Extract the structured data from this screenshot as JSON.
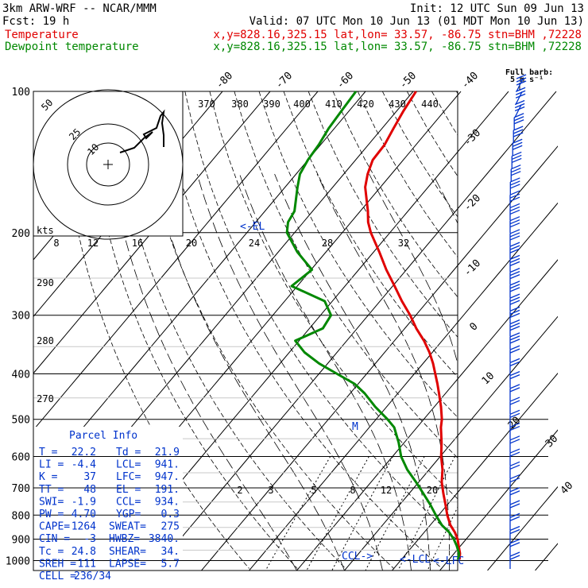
{
  "header": {
    "model": "3km ARW-WRF -- NCAR/MMM",
    "init": "Init: 12 UTC Sun 09 Jun 13",
    "fcst": "Fcst:   19 h",
    "valid": "Valid: 07 UTC Mon 10 Jun 13 (01 MDT Mon 10 Jun 13)"
  },
  "legend": [
    {
      "label": "Temperature",
      "info": "x,y=828.16,325.15   lat,lon= 33.57, -86.75  stn=BHM ,72228",
      "color": "#e00000"
    },
    {
      "label": "Dewpoint temperature",
      "info": "x,y=828.16,325.15   lat,lon= 33.57, -86.75  stn=BHM ,72228",
      "color": "#008800"
    }
  ],
  "wind_key": {
    "title": "Full barb:",
    "value": "5 m s⁻¹"
  },
  "pressure_labels": [
    "100",
    "200",
    "300",
    "400",
    "500",
    "600",
    "700",
    "800",
    "900",
    "1000"
  ],
  "top_temp_labels": [
    "-80",
    "-70",
    "-60",
    "-50",
    "-40"
  ],
  "side_temp_labels": [
    "-30",
    "-20",
    "-10",
    "0",
    "10",
    "20",
    "30",
    "40"
  ],
  "theta_labels": [
    "370",
    "380",
    "390",
    "400",
    "410",
    "420",
    "430",
    "440"
  ],
  "theta_side_labels": [
    "290",
    "280",
    "270"
  ],
  "mixing_labels_upper": [
    "8",
    "12",
    "16",
    "20",
    "24",
    "28",
    "32"
  ],
  "mixing_labels_lower": [
    "2",
    "3",
    "5",
    "8",
    "12",
    "20"
  ],
  "hodograph": {
    "kts_label": "kts",
    "ring_labels": [
      "50",
      "25",
      "10"
    ]
  },
  "annotations": {
    "el": "<-EL",
    "ccl": "CCL->",
    "lcl": "<-LCL",
    "lfc": "<-LFC",
    "m": "M"
  },
  "parcel_info": {
    "title": "Parcel Info",
    "rows": [
      [
        "T  =",
        "22.2",
        "Td =",
        "21.9"
      ],
      [
        "LI =",
        "-4.4",
        "LCL=",
        "941."
      ],
      [
        "K  =",
        "37",
        "LFC=",
        "947."
      ],
      [
        "TT =",
        "48",
        "EL =",
        "191."
      ],
      [
        "SWI=",
        "-1.9",
        "CCL=",
        "934."
      ],
      [
        "PW =",
        "4.70",
        "YGP=",
        "0.3"
      ],
      [
        "CAPE=",
        "1264",
        "SWEAT=",
        "275"
      ],
      [
        "CIN =",
        "-3",
        "HWBZ=",
        "3840."
      ],
      [
        "Tc =",
        "24.8",
        "SHEAR=",
        "34."
      ],
      [
        "SREH =",
        "111",
        "LAPSE=",
        "5.7"
      ],
      [
        "CELL =",
        "236/34",
        "",
        ""
      ]
    ]
  },
  "chart_data": {
    "type": "line",
    "title": "",
    "xlabel": "",
    "ylabel": "",
    "y_axis": "pressure (hPa), log scale",
    "ylim": [
      1000,
      100
    ],
    "series": [
      {
        "name": "Temperature",
        "pressure": [
          995,
          965,
          930,
          900,
          870,
          840,
          800,
          760,
          720,
          680,
          640,
          600,
          560,
          520,
          500,
          470,
          440,
          420,
          400,
          380,
          360,
          340,
          320,
          300,
          280,
          260,
          240,
          220,
          200,
          190,
          180,
          160,
          150,
          140,
          130,
          120,
          110,
          100
        ],
        "values": [
          22.2,
          21.2,
          19.6,
          18.2,
          16.4,
          14.2,
          11.8,
          9.6,
          7.2,
          4.8,
          2.8,
          0.2,
          -2.2,
          -5.0,
          -6.2,
          -8.6,
          -11.4,
          -13.4,
          -15.6,
          -17.9,
          -20.6,
          -23.8,
          -27.6,
          -31.2,
          -35.4,
          -39.6,
          -44.2,
          -48.8,
          -54.0,
          -56.4,
          -58.4,
          -63.2,
          -65.0,
          -66.4,
          -66.6,
          -67.6,
          -68.6,
          -69.4
        ]
      },
      {
        "name": "Dewpoint temperature",
        "pressure": [
          995,
          965,
          930,
          900,
          870,
          840,
          800,
          760,
          720,
          680,
          640,
          600,
          560,
          520,
          500,
          470,
          440,
          420,
          400,
          380,
          360,
          340,
          320,
          300,
          280,
          260,
          240,
          220,
          200,
          190,
          180,
          160,
          150,
          140,
          130,
          120,
          110,
          100
        ],
        "values": [
          21.9,
          21.0,
          19.2,
          17.4,
          15.2,
          12.4,
          9.4,
          6.4,
          3.0,
          -0.6,
          -4.6,
          -8.2,
          -11.2,
          -14.8,
          -17.6,
          -22.4,
          -27.0,
          -30.8,
          -36.2,
          -41.8,
          -46.8,
          -50.8,
          -47.2,
          -47.8,
          -51.6,
          -61.2,
          -59.8,
          -66.0,
          -71.6,
          -73.2,
          -73.8,
          -77.4,
          -79.2,
          -80.0,
          -80.4,
          -81.2,
          -81.6,
          -82.0
        ]
      }
    ],
    "wind_barbs_levels": 38
  }
}
